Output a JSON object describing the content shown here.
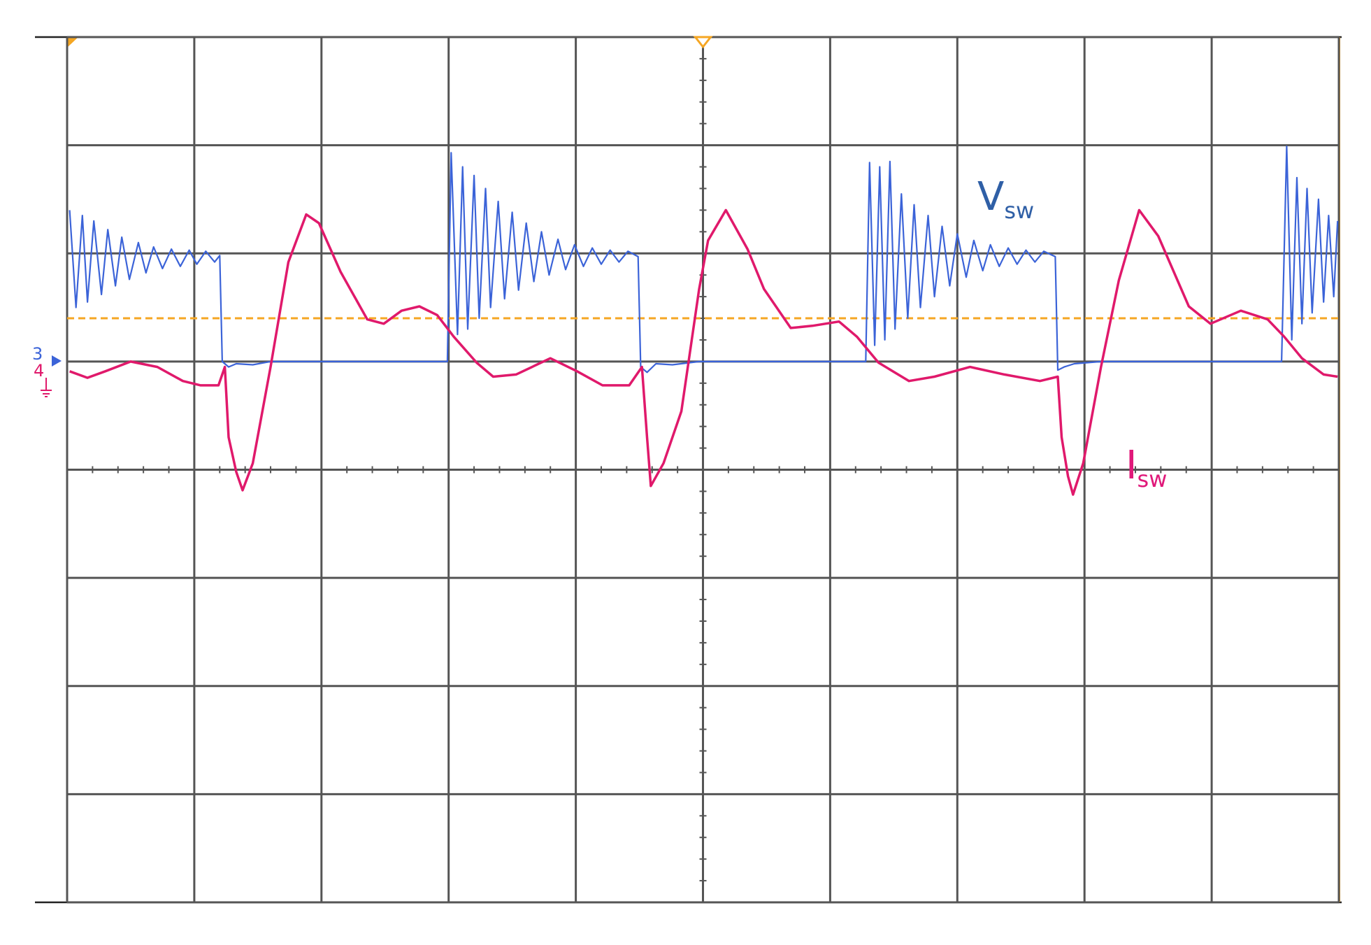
{
  "chart_data": {
    "type": "line",
    "xlim": [
      0,
      10
    ],
    "ylim": [
      -4,
      4
    ],
    "xticks": [
      0,
      1,
      2,
      3,
      4,
      5,
      6,
      7,
      8,
      9,
      10
    ],
    "yticks": [
      -4,
      -3,
      -2,
      -1,
      0,
      1,
      2,
      3,
      4
    ],
    "grid": true,
    "trigger_level": 1.4,
    "trigger_position": 5,
    "trigger_color": "#f5a623",
    "channel_markers": [
      {
        "label": "3",
        "color": "#3b63d8"
      },
      {
        "label": "4",
        "color": "#e0196b"
      }
    ],
    "series": [
      {
        "name": "V",
        "name_sub": "sw",
        "color": "#3b63d8",
        "label_color": "#2f5fa6",
        "x": [
          0.02,
          0.07,
          0.12,
          0.16,
          0.21,
          0.27,
          0.32,
          0.38,
          0.43,
          0.49,
          0.56,
          0.62,
          0.68,
          0.75,
          0.82,
          0.89,
          0.96,
          1.02,
          1.09,
          1.16,
          1.2,
          1.22,
          1.27,
          1.33,
          1.46,
          1.6,
          2.99,
          3.02,
          3.07,
          3.11,
          3.15,
          3.2,
          3.24,
          3.29,
          3.33,
          3.39,
          3.44,
          3.5,
          3.55,
          3.61,
          3.67,
          3.73,
          3.79,
          3.86,
          3.92,
          3.99,
          4.06,
          4.13,
          4.2,
          4.27,
          4.34,
          4.41,
          4.49,
          4.51,
          4.56,
          4.63,
          4.76,
          4.97,
          6.28,
          6.31,
          6.35,
          6.39,
          6.43,
          6.47,
          6.51,
          6.56,
          6.61,
          6.66,
          6.71,
          6.77,
          6.82,
          6.88,
          6.94,
          7.0,
          7.07,
          7.13,
          7.2,
          7.26,
          7.33,
          7.4,
          7.47,
          7.54,
          7.61,
          7.68,
          7.77,
          7.79,
          7.84,
          7.92,
          8.13,
          9.55,
          9.59,
          9.63,
          9.67,
          9.71,
          9.75,
          9.79,
          9.84,
          9.88,
          9.92,
          9.96,
          9.99
        ],
        "values": [
          2.4,
          1.5,
          2.35,
          1.55,
          2.3,
          1.62,
          2.22,
          1.7,
          2.15,
          1.76,
          2.1,
          1.82,
          2.06,
          1.86,
          2.04,
          1.88,
          2.03,
          1.9,
          2.02,
          1.92,
          1.98,
          1.0,
          0.95,
          0.98,
          0.97,
          1.0,
          1.0,
          2.93,
          1.25,
          2.8,
          1.3,
          2.72,
          1.4,
          2.6,
          1.5,
          2.48,
          1.58,
          2.38,
          1.66,
          2.28,
          1.74,
          2.2,
          1.8,
          2.13,
          1.85,
          2.08,
          1.88,
          2.05,
          1.9,
          2.03,
          1.92,
          2.02,
          1.97,
          0.95,
          0.9,
          0.98,
          0.97,
          1.0,
          1.0,
          2.84,
          1.15,
          2.8,
          1.2,
          2.85,
          1.3,
          2.55,
          1.4,
          2.45,
          1.5,
          2.35,
          1.6,
          2.25,
          1.7,
          2.18,
          1.78,
          2.12,
          1.84,
          2.08,
          1.88,
          2.05,
          1.9,
          2.03,
          1.92,
          2.02,
          1.97,
          0.92,
          0.95,
          0.98,
          1.0,
          1.0,
          2.99,
          1.2,
          2.7,
          1.35,
          2.6,
          1.45,
          2.5,
          1.55,
          2.35,
          1.6,
          2.3
        ]
      },
      {
        "name": "I",
        "name_sub": "sw",
        "color": "#e0196b",
        "label_color": "#e0197a",
        "x": [
          0.02,
          0.16,
          0.3,
          0.5,
          0.71,
          0.91,
          1.05,
          1.19,
          1.24,
          1.27,
          1.33,
          1.38,
          1.46,
          1.6,
          1.74,
          1.88,
          1.98,
          2.15,
          2.36,
          2.49,
          2.63,
          2.77,
          2.91,
          3.04,
          3.22,
          3.35,
          3.53,
          3.8,
          4.01,
          4.21,
          4.42,
          4.52,
          4.56,
          4.59,
          4.69,
          4.83,
          4.97,
          5.04,
          5.18,
          5.35,
          5.48,
          5.69,
          5.86,
          6.07,
          6.21,
          6.38,
          6.62,
          6.82,
          7.1,
          7.37,
          7.65,
          7.79,
          7.82,
          7.87,
          7.91,
          7.99,
          8.13,
          8.27,
          8.43,
          8.58,
          8.82,
          8.99,
          9.23,
          9.44,
          9.57,
          9.71,
          9.88,
          9.99
        ],
        "values": [
          0.91,
          0.85,
          0.91,
          1.0,
          0.95,
          0.82,
          0.78,
          0.78,
          0.95,
          0.3,
          -0.02,
          -0.19,
          0.06,
          0.95,
          1.92,
          2.36,
          2.28,
          1.83,
          1.39,
          1.35,
          1.47,
          1.51,
          1.43,
          1.23,
          0.99,
          0.86,
          0.88,
          1.03,
          0.91,
          0.78,
          0.78,
          0.95,
          0.3,
          -0.15,
          0.06,
          0.54,
          1.67,
          2.12,
          2.4,
          2.04,
          1.67,
          1.31,
          1.33,
          1.37,
          1.23,
          0.99,
          0.82,
          0.86,
          0.95,
          0.88,
          0.82,
          0.86,
          0.3,
          -0.06,
          -0.23,
          0.06,
          0.95,
          1.75,
          2.4,
          2.16,
          1.51,
          1.35,
          1.47,
          1.39,
          1.23,
          1.03,
          0.88,
          0.86
        ]
      }
    ]
  }
}
